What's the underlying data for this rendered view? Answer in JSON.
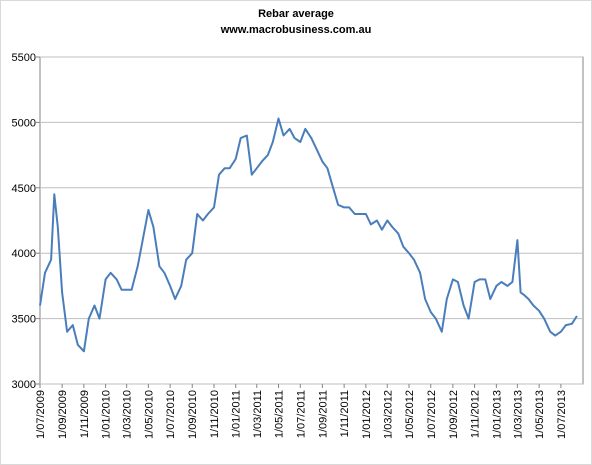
{
  "chart_data": {
    "type": "line",
    "title": "Rebar average",
    "subtitle": "www.macrobusiness.com.au",
    "x": [
      "1/07/2009",
      "15/07/2009",
      "1/08/2009",
      "10/08/2009",
      "20/08/2009",
      "1/09/2009",
      "15/09/2009",
      "1/10/2009",
      "15/10/2009",
      "1/11/2009",
      "15/11/2009",
      "1/12/2009",
      "15/12/2009",
      "1/01/2010",
      "15/01/2010",
      "1/02/2010",
      "15/02/2010",
      "1/03/2010",
      "15/03/2010",
      "1/04/2010",
      "15/04/2010",
      "1/05/2010",
      "15/05/2010",
      "1/06/2010",
      "15/06/2010",
      "1/07/2010",
      "15/07/2010",
      "1/08/2010",
      "15/08/2010",
      "1/09/2010",
      "15/09/2010",
      "1/10/2010",
      "15/10/2010",
      "1/11/2010",
      "15/11/2010",
      "1/12/2010",
      "15/12/2010",
      "1/01/2011",
      "15/01/2011",
      "1/02/2011",
      "15/02/2011",
      "1/03/2011",
      "15/03/2011",
      "1/04/2011",
      "15/04/2011",
      "1/05/2011",
      "15/05/2011",
      "1/06/2011",
      "15/06/2011",
      "1/07/2011",
      "15/07/2011",
      "1/08/2011",
      "15/08/2011",
      "1/09/2011",
      "15/09/2011",
      "1/10/2011",
      "15/10/2011",
      "1/11/2011",
      "15/11/2011",
      "1/12/2011",
      "15/12/2011",
      "1/01/2012",
      "15/01/2012",
      "1/02/2012",
      "15/02/2012",
      "1/03/2012",
      "15/03/2012",
      "1/04/2012",
      "15/04/2012",
      "1/05/2012",
      "15/05/2012",
      "1/06/2012",
      "15/06/2012",
      "1/07/2012",
      "15/07/2012",
      "1/08/2012",
      "15/08/2012",
      "1/09/2012",
      "15/09/2012",
      "1/10/2012",
      "15/10/2012",
      "1/11/2012",
      "15/11/2012",
      "1/12/2012",
      "15/12/2012",
      "1/01/2013",
      "15/01/2013",
      "1/02/2013",
      "15/02/2013",
      "1/03/2013",
      "10/03/2013",
      "20/03/2013",
      "1/04/2013",
      "15/04/2013",
      "1/05/2013",
      "15/05/2013",
      "1/06/2013",
      "15/06/2013",
      "1/07/2013",
      "15/07/2013",
      "1/08/2013",
      "15/08/2013"
    ],
    "series": [
      {
        "name": "Rebar average",
        "color": "#4a7ebb",
        "values": [
          3600,
          3850,
          3950,
          4450,
          4200,
          3700,
          3400,
          3450,
          3300,
          3250,
          3500,
          3600,
          3500,
          3800,
          3850,
          3800,
          3720,
          3720,
          3720,
          3900,
          4100,
          4330,
          4200,
          3900,
          3850,
          3750,
          3650,
          3750,
          3950,
          4000,
          4300,
          4250,
          4300,
          4350,
          4600,
          4650,
          4650,
          4720,
          4880,
          4900,
          4600,
          4650,
          4700,
          4750,
          4850,
          5030,
          4900,
          4950,
          4880,
          4850,
          4950,
          4880,
          4800,
          4700,
          4650,
          4500,
          4370,
          4350,
          4350,
          4300,
          4300,
          4300,
          4220,
          4250,
          4180,
          4250,
          4200,
          4150,
          4050,
          4000,
          3950,
          3850,
          3650,
          3550,
          3500,
          3400,
          3650,
          3800,
          3780,
          3600,
          3500,
          3780,
          3800,
          3800,
          3650,
          3750,
          3780,
          3750,
          3780,
          4100,
          3700,
          3680,
          3650,
          3600,
          3560,
          3500,
          3400,
          3370,
          3400,
          3450,
          3460,
          3520
        ]
      }
    ],
    "xlim": [
      "1/07/2009",
      "1/09/2013"
    ],
    "xticks": [
      "1/07/2009",
      "1/09/2009",
      "1/11/2009",
      "1/01/2010",
      "1/03/2010",
      "1/05/2010",
      "1/07/2010",
      "1/09/2010",
      "1/11/2010",
      "1/01/2011",
      "1/03/2011",
      "1/05/2011",
      "1/07/2011",
      "1/09/2011",
      "1/11/2011",
      "1/01/2012",
      "1/03/2012",
      "1/05/2012",
      "1/07/2012",
      "1/09/2012",
      "1/11/2012",
      "1/01/2013",
      "1/03/2013",
      "1/05/2013",
      "1/07/2013"
    ],
    "ylim": [
      3000,
      5500
    ],
    "yticks": [
      3000,
      3500,
      4000,
      4500,
      5000,
      5500
    ],
    "grid": true
  }
}
